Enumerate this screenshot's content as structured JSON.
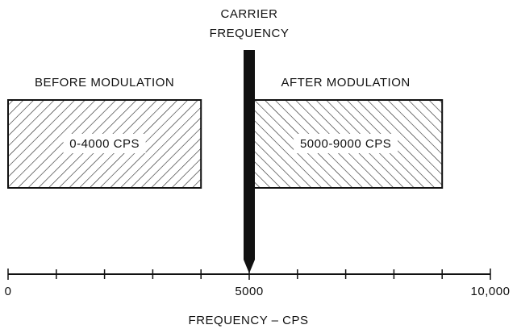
{
  "diagram": {
    "title_lines": [
      "CARRIER",
      "FREQUENCY"
    ],
    "carrier": {
      "value": 5000
    },
    "bands": [
      {
        "heading": "BEFORE MODULATION",
        "label": "0-4000 CPS",
        "from": 0,
        "to": 4000
      },
      {
        "heading": "AFTER MODULATION",
        "label": "5000-9000 CPS",
        "from": 5000,
        "to": 9000
      }
    ],
    "axis": {
      "label": "FREQUENCY – CPS",
      "xlim": [
        0,
        10000
      ],
      "xticks": [
        0,
        5000,
        {
          "value": 10000,
          "label": "10,000"
        }
      ],
      "minor_xticks": [
        1000,
        2000,
        3000,
        4000,
        6000,
        7000,
        8000,
        9000
      ]
    }
  }
}
